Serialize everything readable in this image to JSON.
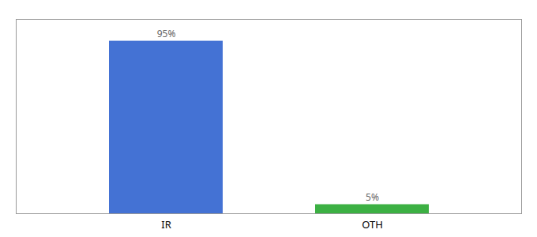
{
  "chart_data": {
    "type": "bar",
    "categories": [
      "IR",
      "OTH"
    ],
    "values": [
      95,
      5
    ],
    "value_labels": [
      "95%",
      "5%"
    ],
    "colors": [
      "#4472d4",
      "#3cb043"
    ],
    "ylim": [
      0,
      107
    ],
    "data_labels": true,
    "tick_labels": "x"
  }
}
